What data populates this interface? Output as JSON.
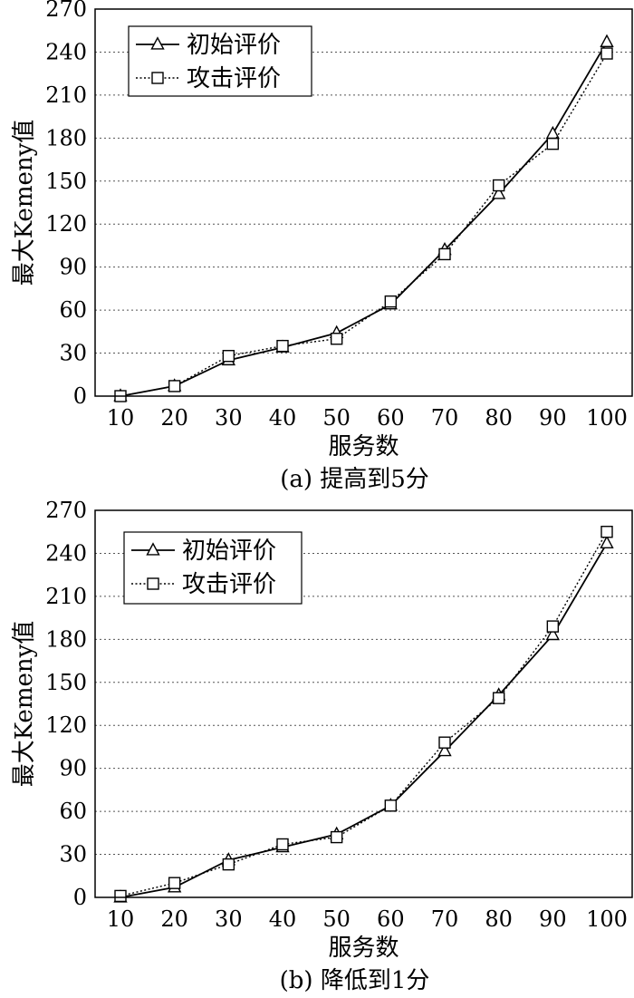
{
  "chart_data": [
    {
      "type": "line",
      "caption": "(a) 提高到5分",
      "xlabel": "服务数",
      "ylabel": "最大Kemeny值",
      "categories": [
        "10",
        "20",
        "30",
        "40",
        "50",
        "60",
        "70",
        "80",
        "90",
        "100"
      ],
      "x": [
        10,
        20,
        30,
        40,
        50,
        60,
        70,
        80,
        90,
        100
      ],
      "ylim": [
        0,
        270
      ],
      "yticks": [
        0,
        30,
        60,
        90,
        120,
        150,
        180,
        210,
        240,
        270
      ],
      "grid": "horizontal dotted",
      "legend_position": "top-left",
      "series": [
        {
          "name": "初始评价",
          "marker": "triangle",
          "line": "solid",
          "values": [
            0,
            7,
            25,
            34,
            44,
            64,
            102,
            141,
            183,
            247
          ]
        },
        {
          "name": "攻击评价",
          "marker": "square",
          "line": "dotted",
          "values": [
            0,
            7,
            28,
            35,
            40,
            66,
            99,
            147,
            176,
            239
          ]
        }
      ]
    },
    {
      "type": "line",
      "caption": "(b) 降低到1分",
      "xlabel": "服务数",
      "ylabel": "最大Kemeny值",
      "categories": [
        "10",
        "20",
        "30",
        "40",
        "50",
        "60",
        "70",
        "80",
        "90",
        "100"
      ],
      "x": [
        10,
        20,
        30,
        40,
        50,
        60,
        70,
        80,
        90,
        100
      ],
      "ylim": [
        0,
        270
      ],
      "yticks": [
        0,
        30,
        60,
        90,
        120,
        150,
        180,
        210,
        240,
        270
      ],
      "grid": "horizontal dotted",
      "legend_position": "top-left",
      "series": [
        {
          "name": "初始评价",
          "marker": "triangle",
          "line": "solid",
          "values": [
            0,
            7,
            26,
            35,
            44,
            64,
            102,
            141,
            183,
            247
          ]
        },
        {
          "name": "攻击评价",
          "marker": "square",
          "line": "dotted",
          "values": [
            1,
            10,
            23,
            37,
            42,
            64,
            108,
            139,
            189,
            255
          ]
        }
      ]
    }
  ]
}
